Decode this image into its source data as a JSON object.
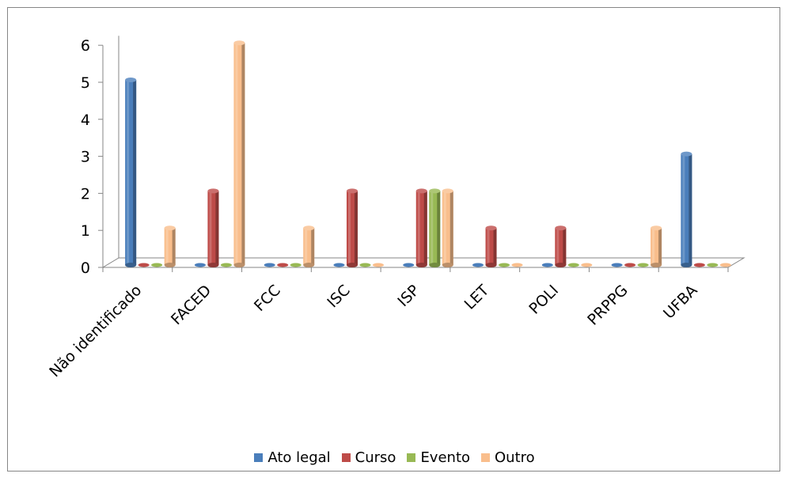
{
  "chart_data": {
    "type": "bar",
    "title": "",
    "xlabel": "",
    "ylabel": "",
    "ylim": [
      0,
      6
    ],
    "yticks": [
      "0",
      "1",
      "2",
      "3",
      "4",
      "5",
      "6"
    ],
    "grid": false,
    "legend_position": "bottom",
    "categories": [
      "Não identificado",
      "FACED",
      "FCC",
      "ISC",
      "ISP",
      "LET",
      "POLI",
      "PRPPG",
      "UFBA"
    ],
    "series": [
      {
        "name": "Ato legal",
        "color": "#4a7ebb",
        "values": [
          5,
          0,
          0,
          0,
          0,
          0,
          0,
          0,
          3
        ]
      },
      {
        "name": "Curso",
        "color": "#be4b48",
        "values": [
          0,
          2,
          0,
          2,
          2,
          1,
          1,
          0,
          0
        ]
      },
      {
        "name": "Evento",
        "color": "#98b954",
        "values": [
          0,
          0,
          0,
          0,
          2,
          0,
          0,
          0,
          0
        ]
      },
      {
        "name": "Outro",
        "color": "#f9be8c",
        "values": [
          1,
          6,
          1,
          0,
          2,
          0,
          0,
          1,
          0
        ]
      }
    ]
  }
}
